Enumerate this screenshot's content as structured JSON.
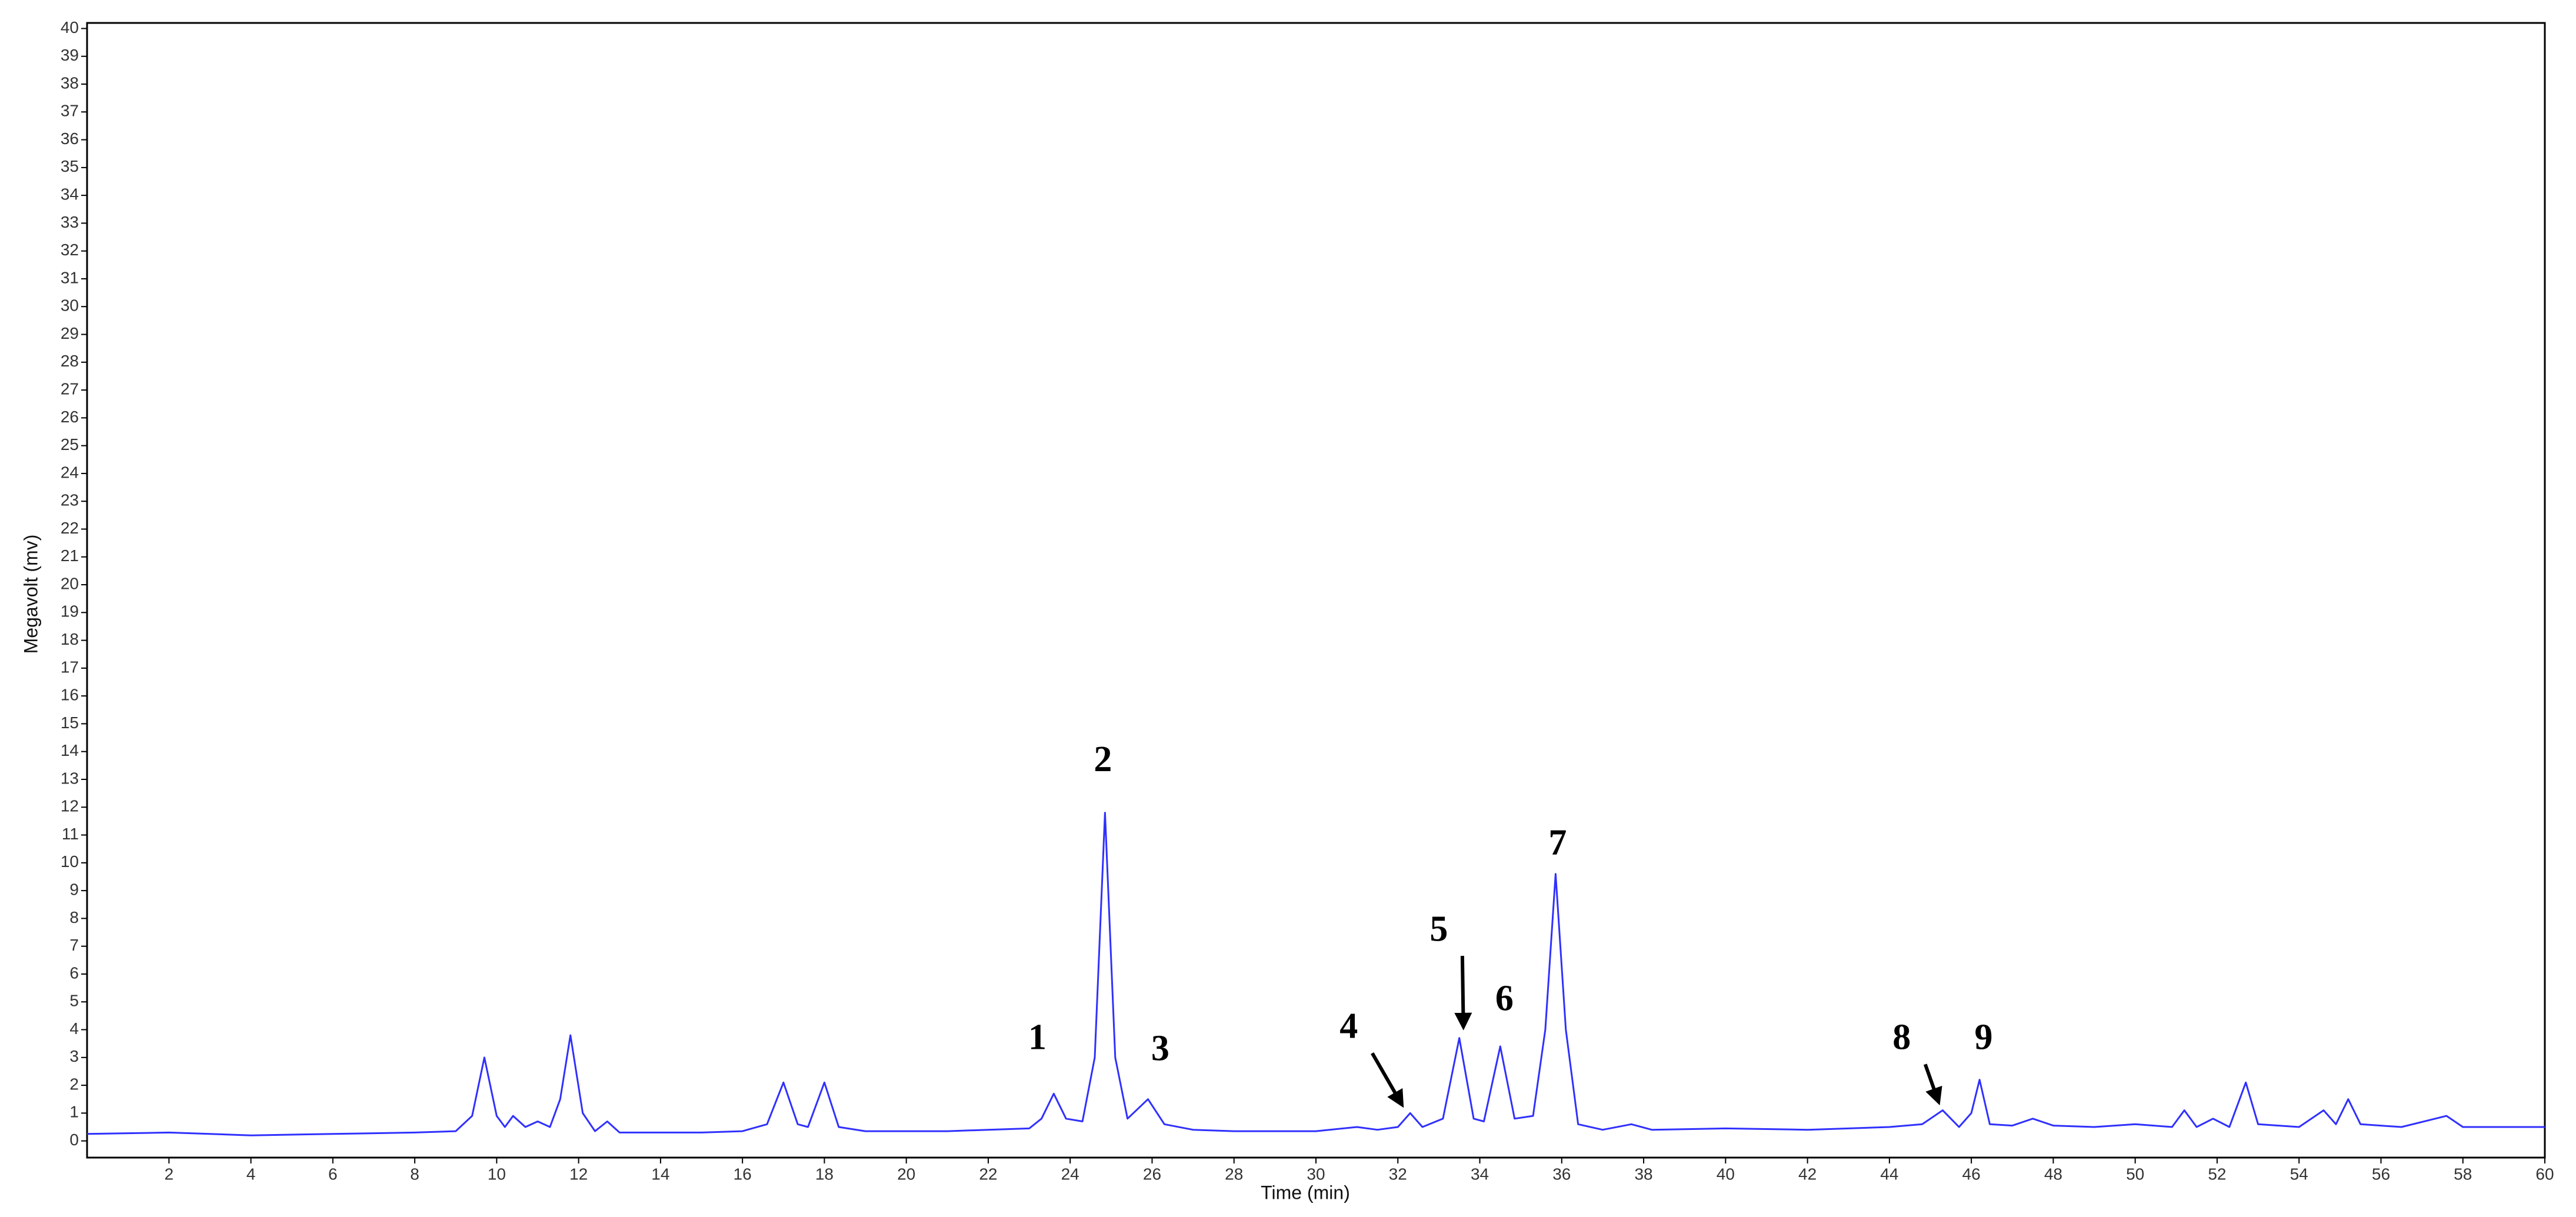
{
  "chart_data": {
    "type": "line",
    "xlabel": "Time (min)",
    "ylabel": "Megavolt (mv)",
    "xlim": [
      0,
      60
    ],
    "ylim": [
      -0.6,
      40.2
    ],
    "xticks": [
      2,
      4,
      6,
      8,
      10,
      12,
      14,
      16,
      18,
      20,
      22,
      24,
      26,
      28,
      30,
      32,
      34,
      36,
      38,
      40,
      42,
      44,
      46,
      48,
      50,
      52,
      54,
      56,
      58,
      60
    ],
    "yticks": [
      0,
      1,
      2,
      3,
      4,
      5,
      6,
      7,
      8,
      9,
      10,
      11,
      12,
      13,
      14,
      15,
      16,
      17,
      18,
      19,
      20,
      21,
      22,
      23,
      24,
      25,
      26,
      27,
      28,
      29,
      30,
      31,
      32,
      33,
      34,
      35,
      36,
      37,
      38,
      39,
      40
    ],
    "grid": false,
    "color": "#3030ff",
    "x": [
      0,
      2,
      4,
      6,
      8,
      9,
      9.4,
      9.7,
      10.0,
      10.2,
      10.4,
      10.7,
      11.0,
      11.3,
      11.55,
      11.8,
      12.1,
      12.4,
      12.7,
      13.0,
      14,
      15,
      16,
      16.6,
      17.0,
      17.35,
      17.6,
      18.0,
      18.35,
      19,
      20,
      21,
      22,
      23.0,
      23.3,
      23.6,
      23.9,
      24.3,
      24.6,
      24.85,
      25.1,
      25.4,
      25.9,
      26.3,
      27,
      28,
      29,
      30,
      31.0,
      31.5,
      32.0,
      32.3,
      32.6,
      33.1,
      33.5,
      33.85,
      34.1,
      34.5,
      34.85,
      35.3,
      35.6,
      35.85,
      36.1,
      36.4,
      37,
      37.7,
      38.2,
      40,
      42,
      44,
      44.8,
      45.3,
      45.7,
      46.0,
      46.2,
      46.45,
      47,
      47.5,
      48,
      49,
      50,
      50.9,
      51.2,
      51.5,
      51.9,
      52.3,
      52.7,
      53.0,
      54,
      54.6,
      54.9,
      55.2,
      55.5,
      56.5,
      57.6,
      58,
      60
    ],
    "values": [
      0.25,
      0.3,
      0.2,
      0.25,
      0.3,
      0.35,
      0.9,
      3.0,
      0.9,
      0.5,
      0.9,
      0.5,
      0.7,
      0.5,
      1.5,
      3.8,
      1.0,
      0.35,
      0.7,
      0.3,
      0.3,
      0.3,
      0.35,
      0.6,
      2.1,
      0.6,
      0.5,
      2.1,
      0.5,
      0.35,
      0.35,
      0.35,
      0.4,
      0.45,
      0.8,
      1.7,
      0.8,
      0.7,
      3.0,
      11.8,
      3.0,
      0.8,
      1.5,
      0.6,
      0.4,
      0.35,
      0.35,
      0.35,
      0.5,
      0.4,
      0.5,
      1.0,
      0.5,
      0.8,
      3.7,
      0.8,
      0.7,
      3.4,
      0.8,
      0.9,
      4.0,
      9.6,
      4.0,
      0.6,
      0.4,
      0.6,
      0.4,
      0.45,
      0.4,
      0.5,
      0.6,
      1.1,
      0.5,
      1.0,
      2.2,
      0.6,
      0.55,
      0.8,
      0.55,
      0.5,
      0.6,
      0.5,
      1.1,
      0.5,
      0.8,
      0.5,
      2.1,
      0.6,
      0.5,
      1.1,
      0.6,
      1.5,
      0.6,
      0.5,
      0.9,
      0.5,
      0.5
    ],
    "annotations": [
      {
        "text": "1"
      },
      {
        "text": "2"
      },
      {
        "text": "3"
      },
      {
        "text": "4"
      },
      {
        "text": "5"
      },
      {
        "text": "6"
      },
      {
        "text": "7"
      },
      {
        "text": "8"
      },
      {
        "text": "9"
      }
    ]
  }
}
